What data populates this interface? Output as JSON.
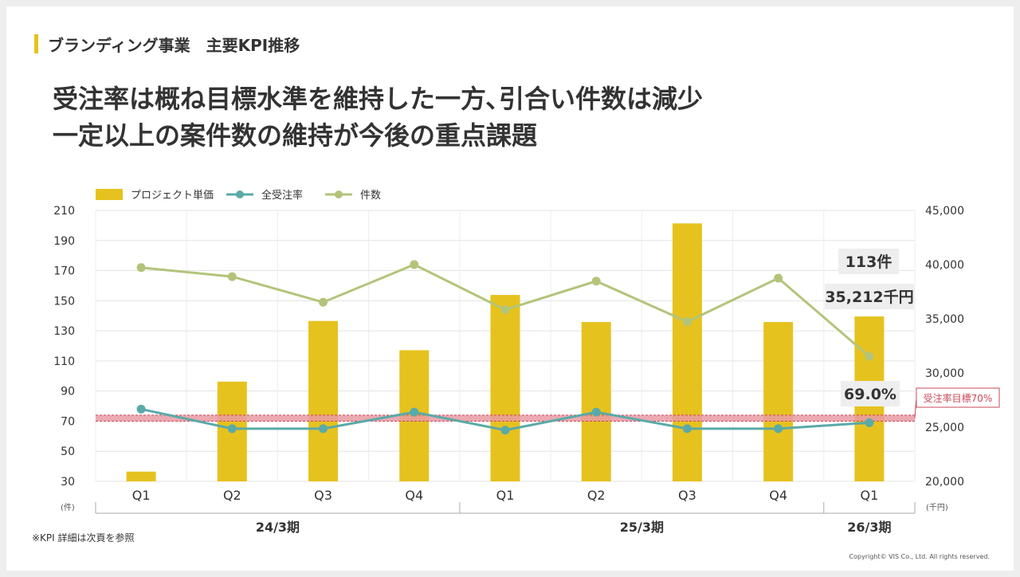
{
  "header": {
    "section_title": "ブランディング事業　主要KPI推移",
    "headline_line1": "受注率は概ね目標水準を維持した一方､引合い件数は減少",
    "headline_line2": "一定以上の案件数の維持が今後の重点課題"
  },
  "footnote": "※KPI 詳細は次頁を参照",
  "copyright": "Copyright© VIS Co., Ltd. All rights reserved.",
  "chart_data": {
    "type": "bar",
    "categories": [
      "Q1",
      "Q2",
      "Q3",
      "Q4",
      "Q1",
      "Q2",
      "Q3",
      "Q4",
      "Q1"
    ],
    "periods": [
      {
        "label": "24/3期",
        "from": 0,
        "to": 3
      },
      {
        "label": "25/3期",
        "from": 4,
        "to": 7
      },
      {
        "label": "26/3期",
        "from": 8,
        "to": 8
      }
    ],
    "left_axis": {
      "unit": "(件)",
      "min": 30,
      "max": 210,
      "ticks": [
        "30",
        "50",
        "70",
        "90",
        "110",
        "130",
        "150",
        "170",
        "190",
        "210"
      ]
    },
    "right_axis": {
      "unit": "(千円)",
      "min": 20000,
      "max": 45000,
      "ticks": [
        "20,000",
        "25,000",
        "30,000",
        "35,000",
        "40,000",
        "45,000"
      ]
    },
    "legend": [
      {
        "name": "プロジェクト単価",
        "kind": "bar",
        "color": "#e6c21f"
      },
      {
        "name": "全受注率",
        "kind": "line",
        "color": "#5aaaa8"
      },
      {
        "name": "件数",
        "kind": "line",
        "color": "#b3c47a"
      }
    ],
    "series": [
      {
        "name": "プロジェクト単価",
        "axis": "right",
        "values": [
          20900,
          29200,
          34800,
          32100,
          37200,
          34700,
          43800,
          34700,
          35212
        ]
      },
      {
        "name": "全受注率",
        "axis": "left",
        "values": [
          78,
          65,
          65,
          76,
          64,
          76,
          65,
          65,
          69
        ]
      },
      {
        "name": "件数",
        "axis": "left",
        "values": [
          172,
          166,
          149,
          174,
          144,
          163,
          136,
          165,
          113
        ]
      }
    ],
    "target_band": {
      "label": "受注率目標70%",
      "min": 70,
      "max": 74
    },
    "annotations": {
      "count": "113件",
      "price": "35,212千円",
      "rate": "69.0%"
    },
    "grid": true,
    "legend_placement": "top-left"
  }
}
